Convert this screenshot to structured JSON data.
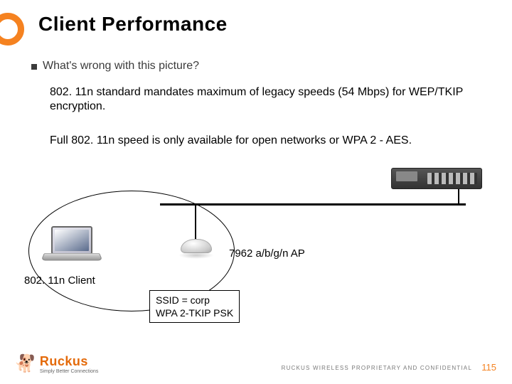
{
  "colors": {
    "accent": "#f58220",
    "title": "#000000",
    "bullet_text": "#3b3b3b",
    "body_text": "#000000",
    "footer_text": "#7a7a7a",
    "page_num": "#f58220",
    "logo_orange": "#e46a0a"
  },
  "title": "Client Performance",
  "bullet": "What's wrong with this picture?",
  "body_line1": "802. 11n standard mandates maximum of legacy speeds (54 Mbps) for WEP/TKIP encryption.",
  "body_line2": "Full 802. 11n speed is only available for open networks or WPA 2 - AES.",
  "diagram": {
    "client_label": "802. 11n Client",
    "ap_label": "7962 a/b/g/n AP",
    "ssid_line1": "SSID = corp",
    "ssid_line2": "WPA 2-TKIP PSK"
  },
  "footer": {
    "brand": "Ruckus",
    "tagline": "Simply Better Connections",
    "confidential": "RUCKUS WIRELESS PROPRIETARY AND CONFIDENTIAL",
    "page": "115"
  }
}
